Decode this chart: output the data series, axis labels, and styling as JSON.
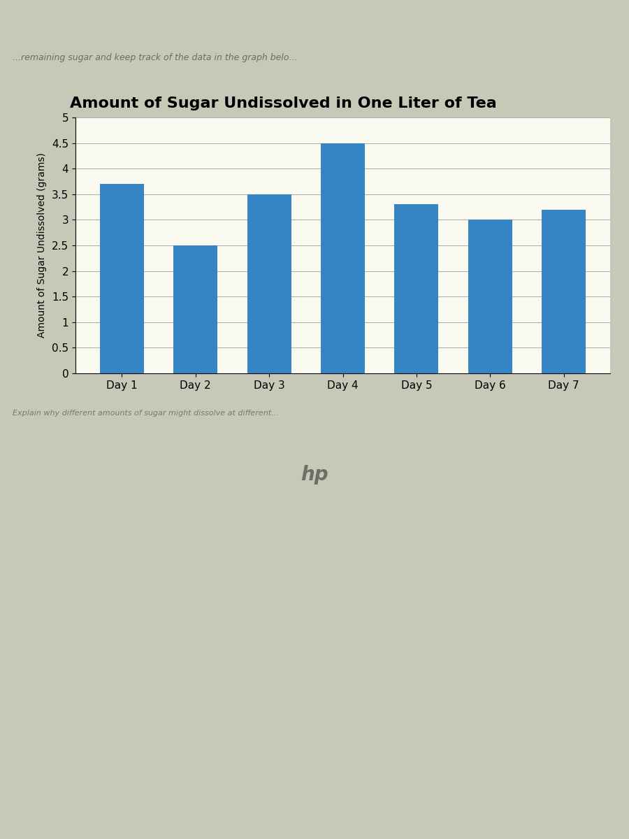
{
  "title": "Amount of Sugar Undissolved in One Liter of Tea",
  "ylabel": "Amount of Sugar Undissolved (grams)",
  "categories": [
    "Day 1",
    "Day 2",
    "Day 3",
    "Day 4",
    "Day 5",
    "Day 6",
    "Day 7"
  ],
  "values": [
    3.7,
    2.5,
    3.5,
    4.5,
    3.3,
    3.0,
    3.2
  ],
  "bar_color": "#3585C5",
  "ylim": [
    0,
    5
  ],
  "yticks": [
    0,
    0.5,
    1,
    1.5,
    2,
    2.5,
    3,
    3.5,
    4,
    4.5,
    5
  ],
  "title_fontsize": 16,
  "label_fontsize": 10,
  "tick_fontsize": 11,
  "chart_bg_color": "#F0F0E0",
  "screen_bg_color": "#C8C8B8",
  "top_bar_color": "#B0B0A0",
  "bezel_color": "#2A2A2E",
  "laptop_body_color": "#1A1A1C",
  "taskbar_color": "#606878",
  "chart_panel_bg": "#FAFAF0",
  "chart_panel_border": "#888888",
  "top_text_color": "#444444",
  "bottom_text_color": "#555555",
  "grid_color": "#AAAAAA"
}
